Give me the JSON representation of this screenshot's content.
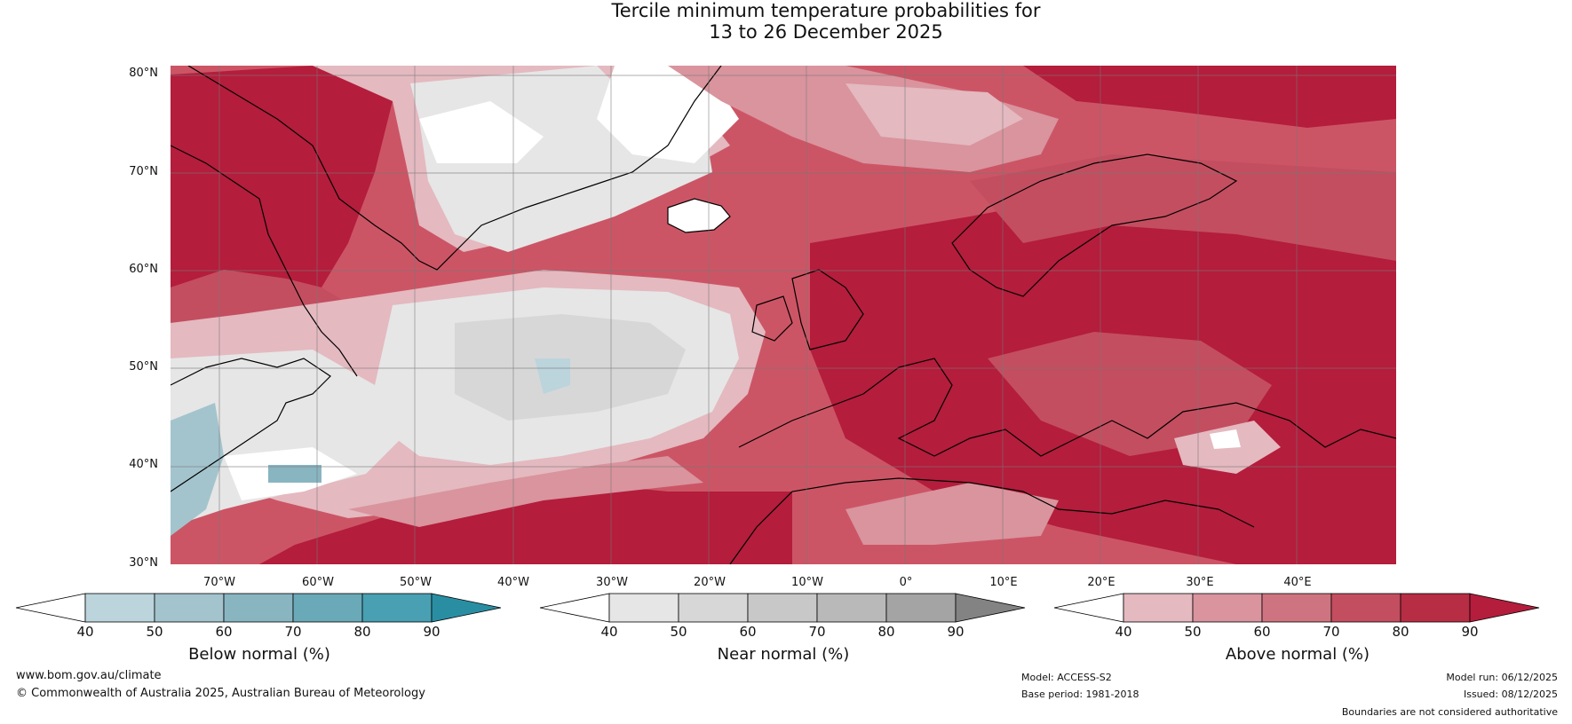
{
  "title": {
    "line1": "Tercile minimum temperature probabilities for",
    "line2": "13 to 26 December 2025"
  },
  "map": {
    "region": "North Atlantic and Europe",
    "lat_labels": [
      "80°N",
      "70°N",
      "60°N",
      "50°N",
      "40°N",
      "30°N"
    ],
    "lon_labels": [
      "70°W",
      "60°W",
      "50°W",
      "40°W",
      "30°W",
      "20°W",
      "10°W",
      "0°",
      "10°E",
      "20°E",
      "30°E",
      "40°E"
    ]
  },
  "colorbars": [
    {
      "label": "Below normal (%)",
      "ticks": [
        "40",
        "50",
        "60",
        "70",
        "80",
        "90"
      ],
      "colors": [
        "#ffffff",
        "#bcd4dc",
        "#a3c4cd",
        "#89b5c1",
        "#6aa9b8",
        "#48a0b2",
        "#2a8ea3"
      ]
    },
    {
      "label": "Near normal (%)",
      "ticks": [
        "40",
        "50",
        "60",
        "70",
        "80",
        "90"
      ],
      "colors": [
        "#ffffff",
        "#e6e6e6",
        "#d7d7d7",
        "#c8c8c8",
        "#b9b9b9",
        "#a4a4a4",
        "#838383"
      ]
    },
    {
      "label": "Above normal (%)",
      "ticks": [
        "40",
        "50",
        "60",
        "70",
        "80",
        "90"
      ],
      "colors": [
        "#ffffff",
        "#e4b9c0",
        "#d9949e",
        "#ce7480",
        "#c34e60",
        "#b72d43",
        "#b41d3c"
      ]
    }
  ],
  "footer": {
    "website": "www.bom.gov.au/climate",
    "copyright": "© Commonwealth of Australia 2025, Australian Bureau of Meteorology",
    "model": "Model: ACCESS-S2",
    "base_period": "Base period: 1981-2018",
    "model_run": "Model run: 06/12/2025",
    "issued": "Issued: 08/12/2025",
    "disclaimer": "Boundaries are not considered authoritative"
  }
}
